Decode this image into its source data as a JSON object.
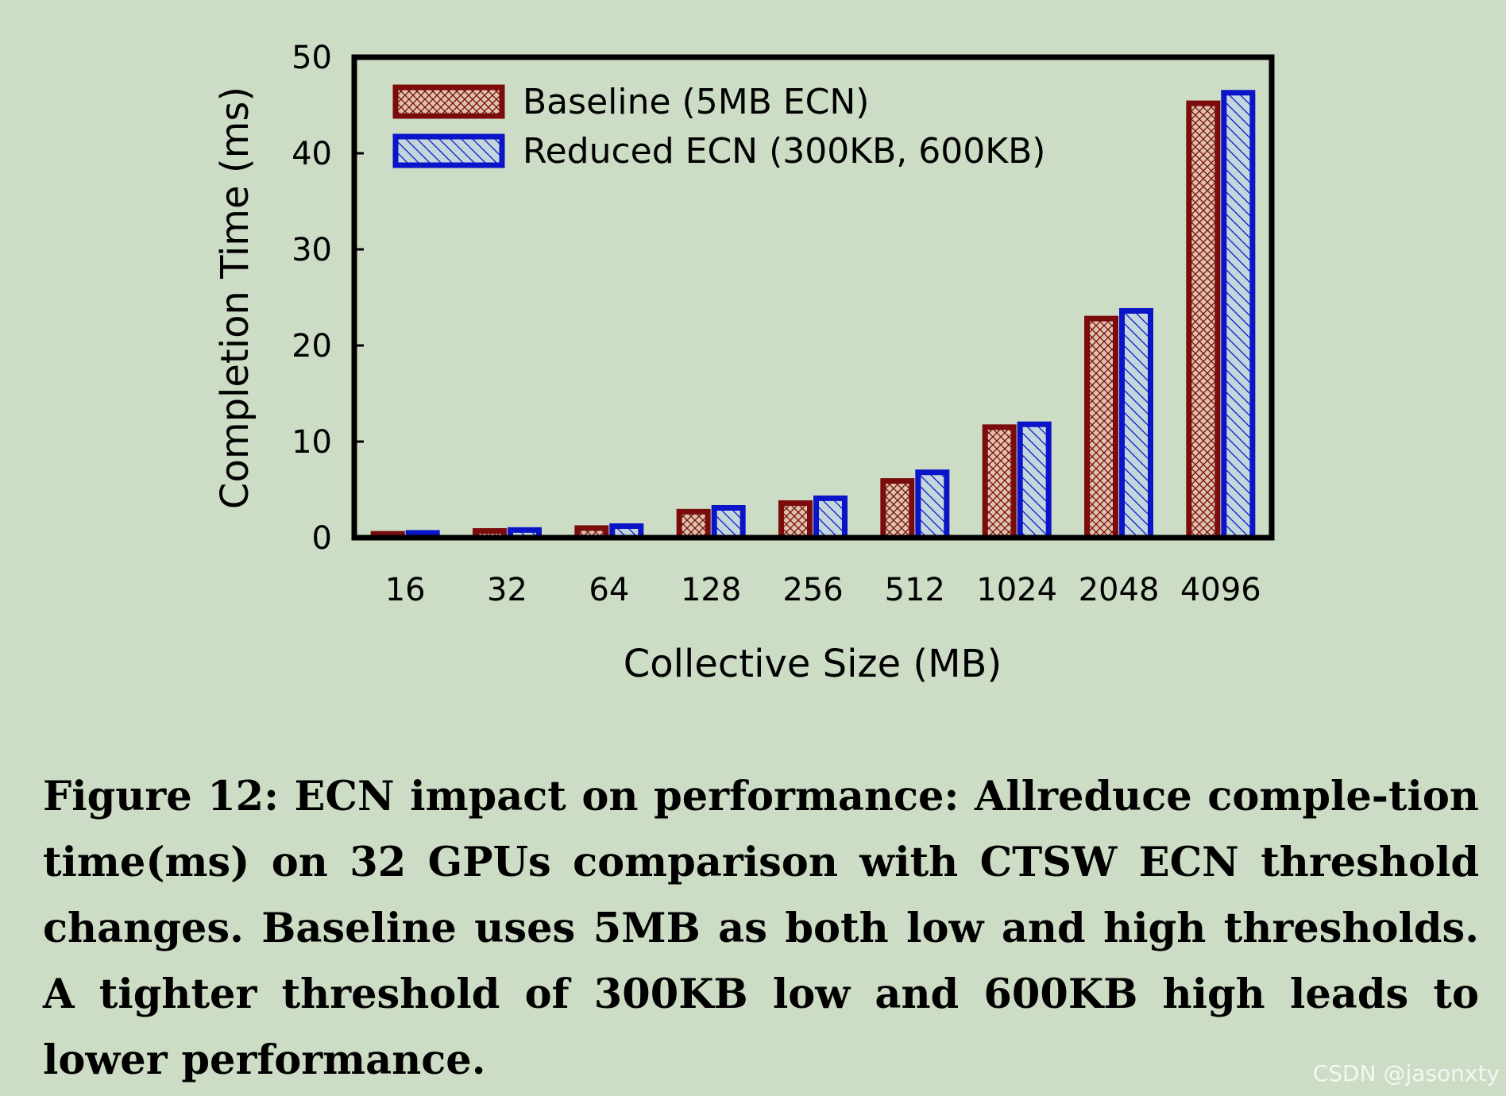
{
  "chart_data": {
    "type": "bar",
    "categories": [
      "16",
      "32",
      "64",
      "128",
      "256",
      "512",
      "1024",
      "2048",
      "4096"
    ],
    "series": [
      {
        "name": "Baseline (5MB ECN)",
        "values": [
          0.4,
          0.7,
          1.0,
          2.7,
          3.6,
          5.9,
          11.5,
          22.8,
          45.2
        ],
        "color": "#7a0c0c",
        "fill": "#dcc3ae",
        "pattern": "crosshatch"
      },
      {
        "name": "Reduced ECN (300KB, 600KB)",
        "values": [
          0.5,
          0.8,
          1.2,
          3.1,
          4.1,
          6.8,
          11.8,
          23.6,
          46.3
        ],
        "color": "#0a14c8",
        "fill": "#c3d6dc",
        "pattern": "diagonal"
      }
    ],
    "xlabel": "Collective Size (MB)",
    "ylabel": "Completion Time (ms)",
    "ylim": [
      0,
      50
    ],
    "yticks": [
      "0",
      "10",
      "20",
      "30",
      "40",
      "50"
    ],
    "legend_position": "top-left",
    "grid": false
  },
  "caption": "Figure 12: ECN impact on performance: Allreduce comple-tion time(ms) on 32 GPUs comparison with CTSW ECN threshold changes. Baseline uses 5MB as both low and high thresholds. A tighter threshold of 300KB low and 600KB high leads to lower performance.",
  "watermark": "CSDN @jasonxty"
}
